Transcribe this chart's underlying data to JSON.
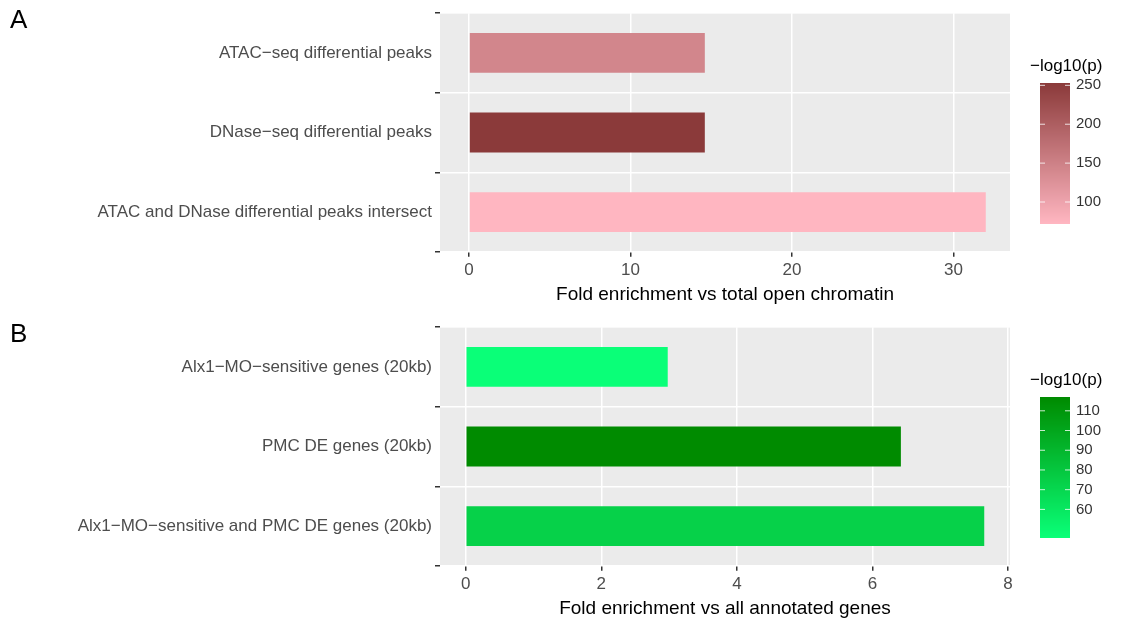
{
  "chart_data": [
    {
      "type": "bar",
      "orientation": "horizontal",
      "annotations": [
        "A"
      ],
      "categories": [
        "ATAC−seq differential peaks",
        "DNase−seq differential peaks",
        "ATAC and DNase differential peaks intersect"
      ],
      "values": [
        14.6,
        14.6,
        32.0
      ],
      "colors": [
        "#d2868c",
        "#8b3a3a",
        "#ffb6c1"
      ],
      "cvalues": [
        143,
        253,
        73
      ],
      "xlabel": "Fold enrichment vs total open chromatin",
      "xlim": [
        -1.8,
        33.5
      ],
      "xticks": [
        0,
        10,
        20,
        30
      ],
      "clabel": "−log10(p)",
      "clim": [
        73,
        253
      ],
      "cticks": [
        100,
        150,
        200,
        250
      ],
      "grid": true,
      "legend": false
    },
    {
      "type": "bar",
      "orientation": "horizontal",
      "annotations": [
        "B"
      ],
      "categories": [
        "Alx1−MO−sensitive genes (20kb)",
        "PMC DE genes (20kb)",
        "Alx1−MO−sensitive and PMC DE genes (20kb)"
      ],
      "values": [
        2.98,
        6.42,
        7.65
      ],
      "colors": [
        "#0aff78",
        "#008b00",
        "#06d149"
      ],
      "cvalues": [
        46,
        117,
        74
      ],
      "xlabel": "Fold enrichment vs all annotated genes",
      "xlim": [
        -0.38,
        8.03
      ],
      "xticks": [
        0,
        2,
        4,
        6,
        8
      ],
      "clabel": "−log10(p)",
      "clim": [
        46,
        117
      ],
      "cticks": [
        60,
        70,
        80,
        90,
        100,
        110
      ],
      "grid": true,
      "legend": false
    }
  ]
}
